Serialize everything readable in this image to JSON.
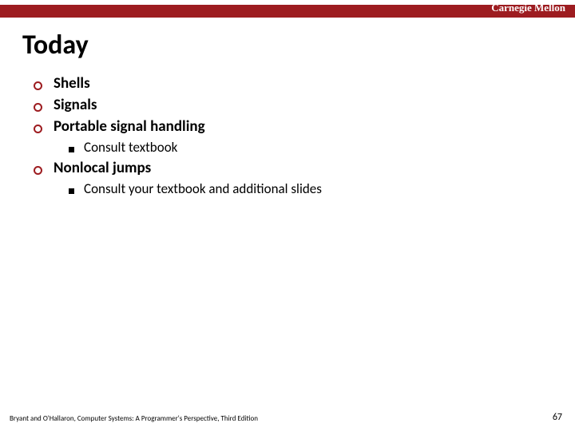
{
  "header": {
    "branding": "Carnegie Mellon",
    "bar_color": "#9d1c20"
  },
  "title": "Today",
  "bullets": {
    "b1": "Shells",
    "b2": "Signals",
    "b3": "Portable signal handling",
    "b3_sub": "Consult textbook",
    "b4": "Nonlocal jumps",
    "b4_sub": "Consult your textbook and additional slides"
  },
  "footer": {
    "left": "Bryant and O'Hallaron, Computer Systems: A Programmer's Perspective, Third Edition",
    "page": "67"
  },
  "style": {
    "title_fontsize": 34,
    "lvl1_fontsize": 19,
    "lvl2_fontsize": 17,
    "ring_color": "#9d1c20",
    "text_color": "#000000",
    "background": "#ffffff"
  }
}
